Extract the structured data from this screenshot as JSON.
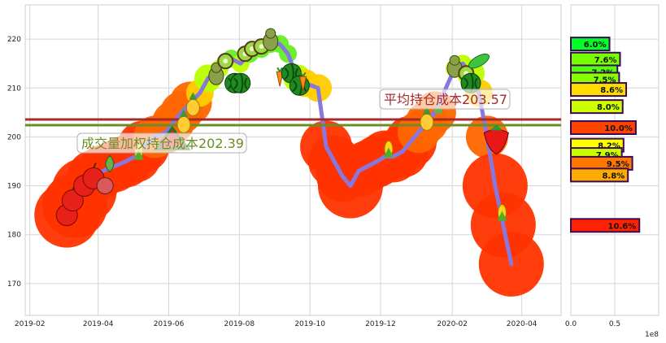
{
  "chart_data": [
    {
      "type": "line",
      "xlabel": "",
      "ylabel": "",
      "xlim": [
        "2019-01-28",
        "2020-05-05"
      ],
      "ylim": [
        163.5,
        227
      ],
      "grid": true,
      "x_ticks": [
        "2019-02",
        "2019-04",
        "2019-06",
        "2019-08",
        "2019-10",
        "2019-12",
        "2020-02",
        "2020-04"
      ],
      "y_ticks": [
        170,
        180,
        190,
        200,
        210,
        220
      ],
      "series": [
        {
          "x": [
            "2019-03-05",
            "2019-03-12",
            "2019-03-20",
            "2019-03-28",
            "2019-04-05",
            "2019-04-15",
            "2019-04-25",
            "2019-05-03",
            "2019-05-10",
            "2019-05-20",
            "2019-05-30",
            "2019-06-05",
            "2019-06-12",
            "2019-06-20",
            "2019-06-28",
            "2019-07-05",
            "2019-07-15",
            "2019-07-25",
            "2019-08-02",
            "2019-08-10",
            "2019-08-20",
            "2019-08-28",
            "2019-09-05",
            "2019-09-12",
            "2019-09-20",
            "2019-09-27",
            "2019-10-08",
            "2019-10-15",
            "2019-10-22",
            "2019-10-29",
            "2019-11-05",
            "2019-11-12",
            "2019-11-20",
            "2019-11-28",
            "2019-12-05",
            "2019-12-12",
            "2019-12-20",
            "2019-12-27",
            "2020-01-03",
            "2020-01-10",
            "2020-01-17",
            "2020-02-03",
            "2020-02-10",
            "2020-02-17",
            "2020-02-24",
            "2020-03-02",
            "2020-03-09",
            "2020-03-16",
            "2020-03-23"
          ],
          "values": [
            184,
            186,
            189,
            192,
            193,
            194,
            195,
            196,
            198,
            200,
            201,
            203,
            205,
            207,
            209,
            212,
            214,
            216,
            215,
            217,
            218,
            219,
            219,
            217,
            212,
            211,
            210,
            198,
            195,
            192,
            190,
            193,
            194,
            195,
            196,
            196,
            197,
            199,
            201,
            203,
            205,
            214,
            215,
            213,
            209,
            200,
            190,
            182,
            174
          ]
        }
      ],
      "annotations": [
        {
          "text": "平均持仓成本203.57",
          "y": 203.57,
          "color": "#a52a2a"
        },
        {
          "text": "成交量加权持仓成本202.39",
          "y": 202.39,
          "color": "#6b8e23"
        }
      ]
    },
    {
      "type": "bar",
      "orientation": "horizontal",
      "xlim": [
        0,
        100000000.0
      ],
      "x_ticks": [
        "0.0",
        "0.5"
      ],
      "offset_label": "1e8",
      "bars": [
        {
          "label": "6.0%",
          "price": 219.0,
          "value": 44000000.0,
          "color": "#00ff22"
        },
        {
          "label": "7.6%",
          "price": 215.9,
          "value": 56000000.0,
          "color": "#77ff00"
        },
        {
          "label": "7.2%",
          "price": 213.3,
          "value": 53000000.0,
          "color": "#55ff10"
        },
        {
          "label": "7.5%",
          "price": 211.8,
          "value": 55000000.0,
          "color": "#88ff00"
        },
        {
          "label": "8.6%",
          "price": 209.7,
          "value": 63000000.0,
          "color": "#ffdd00"
        },
        {
          "label": "8.0%",
          "price": 206.2,
          "value": 59000000.0,
          "color": "#ccff00"
        },
        {
          "label": "10.0%",
          "price": 201.9,
          "value": 74000000.0,
          "color": "#ff4400"
        },
        {
          "label": "8.2%",
          "price": 198.3,
          "value": 60000000.0,
          "color": "#ffff00"
        },
        {
          "label": "7.9%",
          "price": 196.4,
          "value": 58000000.0,
          "color": "#ccff00"
        },
        {
          "label": "9.5%",
          "price": 194.6,
          "value": 70000000.0,
          "color": "#ff7700"
        },
        {
          "label": "8.8%",
          "price": 192.2,
          "value": 65000000.0,
          "color": "#ffaa00"
        },
        {
          "label": "10.6%",
          "price": 181.9,
          "value": 78000000.0,
          "color": "#ff2200"
        }
      ]
    }
  ]
}
